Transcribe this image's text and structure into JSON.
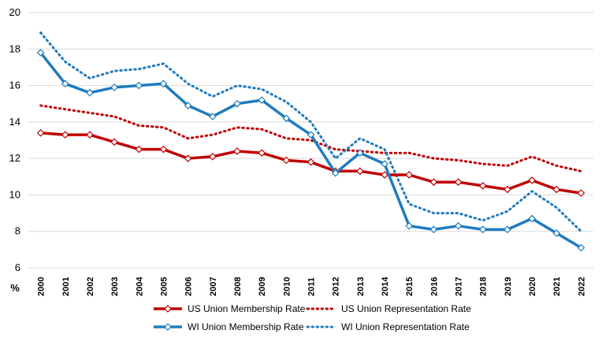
{
  "chart_data": {
    "type": "line",
    "title": "",
    "xlabel": "",
    "ylabel": "",
    "unit_label": "%",
    "ylim": [
      6,
      20
    ],
    "yticks": [
      6,
      8,
      10,
      12,
      14,
      16,
      18,
      20
    ],
    "grid": true,
    "legend_position": "bottom",
    "categories": [
      "2000",
      "2001",
      "2002",
      "2003",
      "2004",
      "2005",
      "2006",
      "2007",
      "2008",
      "2009",
      "2010",
      "2011",
      "2012",
      "2013",
      "2014",
      "2015",
      "2016",
      "2017",
      "2018",
      "2019",
      "2020",
      "2021",
      "2022"
    ],
    "series": [
      {
        "name": "US Union Membership Rate",
        "color": "#c00000",
        "style": "solid",
        "markers": true,
        "values": [
          13.4,
          13.3,
          13.3,
          12.9,
          12.5,
          12.5,
          12.0,
          12.1,
          12.4,
          12.3,
          11.9,
          11.8,
          11.3,
          11.3,
          11.1,
          11.1,
          10.7,
          10.7,
          10.5,
          10.3,
          10.8,
          10.3,
          10.1
        ]
      },
      {
        "name": "US Union Representation Rate",
        "color": "#c00000",
        "style": "dotted",
        "markers": false,
        "values": [
          14.9,
          14.7,
          14.5,
          14.3,
          13.8,
          13.7,
          13.1,
          13.3,
          13.7,
          13.6,
          13.1,
          13.0,
          12.5,
          12.4,
          12.3,
          12.3,
          12.0,
          11.9,
          11.7,
          11.6,
          12.1,
          11.6,
          11.3
        ]
      },
      {
        "name": "WI Union Membership Rate",
        "color": "#1f7bbf",
        "style": "solid",
        "markers": true,
        "values": [
          17.8,
          16.1,
          15.6,
          15.9,
          16.0,
          16.1,
          14.9,
          14.3,
          15.0,
          15.2,
          14.2,
          13.3,
          11.2,
          12.3,
          11.7,
          8.3,
          8.1,
          8.3,
          8.1,
          8.1,
          8.7,
          7.9,
          7.1
        ]
      },
      {
        "name": "WI Union Representation Rate",
        "color": "#1f7bbf",
        "style": "dotted",
        "markers": false,
        "values": [
          18.9,
          17.3,
          16.4,
          16.8,
          16.9,
          17.2,
          16.1,
          15.4,
          16.0,
          15.8,
          15.1,
          14.0,
          12.0,
          13.1,
          12.5,
          9.5,
          9.0,
          9.0,
          8.6,
          9.1,
          10.2,
          9.3,
          8.0
        ]
      }
    ]
  }
}
